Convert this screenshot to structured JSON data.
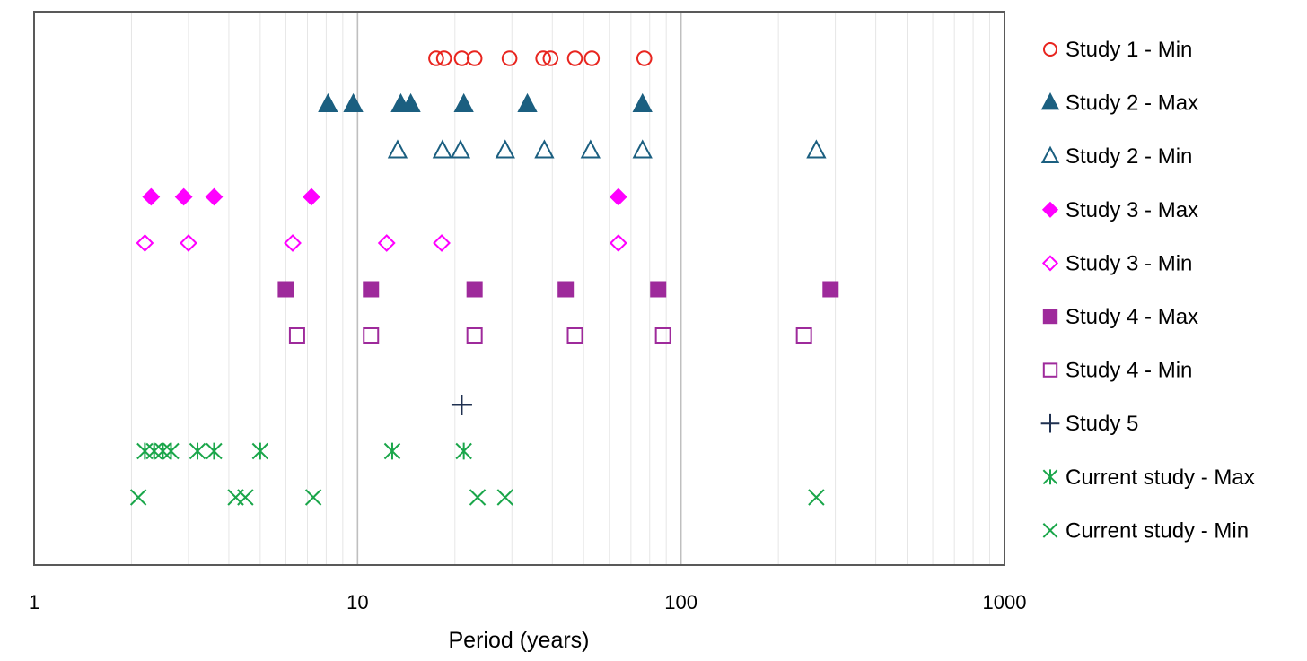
{
  "chart_data": {
    "type": "scatter",
    "xlabel": "Period (years)",
    "xscale": "log",
    "xlim": [
      1,
      1000
    ],
    "xticks": [
      "1",
      "10",
      "100",
      "1000"
    ],
    "grid": "vertical major and minor",
    "legend_position": "right",
    "series": [
      {
        "name": "Study 1 - Min",
        "marker": "circle-open",
        "color": "#e8251f",
        "x": [
          17.5,
          18.5,
          21,
          23,
          29.5,
          37.5,
          39.5,
          47,
          53,
          77
        ]
      },
      {
        "name": "Study 2 - Max",
        "marker": "triangle-filled",
        "color": "#1b5f80",
        "x": [
          8.1,
          9.7,
          13.6,
          14.6,
          21.3,
          33.5,
          76
        ]
      },
      {
        "name": "Study 2 - Min",
        "marker": "triangle-open",
        "color": "#1b5f80",
        "x": [
          13.3,
          18.3,
          20.8,
          28.6,
          37.8,
          52.5,
          76,
          262
        ]
      },
      {
        "name": "Study 3 - Max",
        "marker": "diamond-filled",
        "color": "#ff00ff",
        "x": [
          2.3,
          2.9,
          3.6,
          7.2,
          64
        ]
      },
      {
        "name": "Study 3 - Min",
        "marker": "diamond-open",
        "color": "#ff00ff",
        "x": [
          2.2,
          3.0,
          6.3,
          12.3,
          18.2,
          64
        ]
      },
      {
        "name": "Study 4 - Max",
        "marker": "square-filled",
        "color": "#9e2a9b",
        "x": [
          6.0,
          11.0,
          23.0,
          44.0,
          85.0,
          290.0
        ]
      },
      {
        "name": "Study 4 - Min",
        "marker": "square-open",
        "color": "#9e2a9b",
        "x": [
          6.5,
          11.0,
          23.0,
          47.0,
          88.0,
          240.0
        ]
      },
      {
        "name": "Study 5",
        "marker": "plus",
        "color": "#1f3050",
        "x": [
          21.0
        ]
      },
      {
        "name": "Current study - Max",
        "marker": "asterisk",
        "color": "#1aa64a",
        "x": [
          2.2,
          2.35,
          2.5,
          2.65,
          3.2,
          3.6,
          5.0,
          12.8,
          21.3
        ]
      },
      {
        "name": "Current study - Min",
        "marker": "x",
        "color": "#1aa64a",
        "x": [
          2.1,
          4.2,
          4.5,
          7.3,
          23.5,
          28.6,
          262
        ]
      }
    ]
  }
}
